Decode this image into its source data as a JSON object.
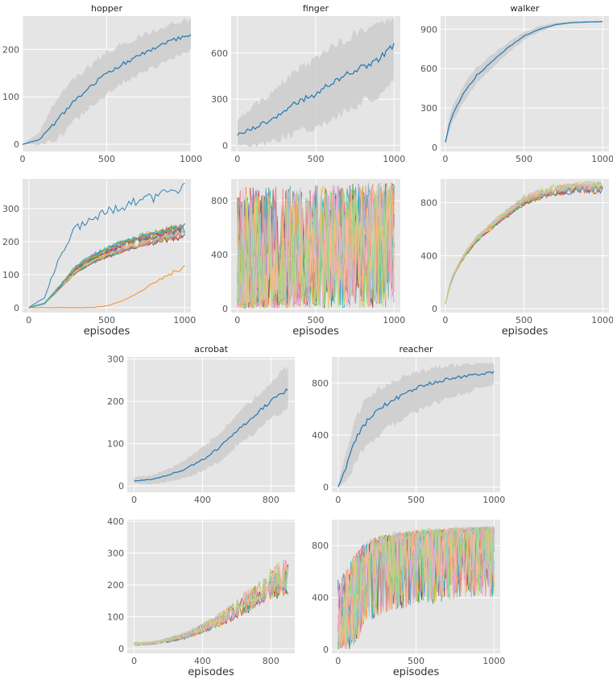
{
  "chart_data": [
    {
      "id": "hopper-mean",
      "type": "line",
      "title": "hopper",
      "xlabel": "",
      "ylabel": "",
      "xlim": [
        0,
        1000
      ],
      "ylim": [
        -15,
        270
      ],
      "xticks": [
        "0",
        "500",
        "1000"
      ],
      "xtick_values": [
        0,
        500,
        1000
      ],
      "yticks": [
        "0",
        "100",
        "200"
      ],
      "ytick_values": [
        0,
        100,
        200
      ],
      "series": [
        {
          "name": "mean",
          "x": [
            0,
            100,
            200,
            300,
            400,
            500,
            600,
            700,
            800,
            900,
            1000
          ],
          "values": [
            0,
            10,
            48,
            88,
            122,
            148,
            170,
            188,
            205,
            220,
            232
          ],
          "band_low": [
            0,
            0,
            10,
            45,
            80,
            105,
            130,
            148,
            165,
            182,
            200
          ],
          "band_high": [
            0,
            25,
            95,
            135,
            165,
            195,
            212,
            228,
            242,
            255,
            265
          ]
        }
      ]
    },
    {
      "id": "finger-mean",
      "type": "line",
      "title": "finger",
      "xlabel": "",
      "ylabel": "",
      "xlim": [
        -40,
        1040
      ],
      "ylim": [
        -40,
        840
      ],
      "xticks": [
        "0",
        "500",
        "1000"
      ],
      "xtick_values": [
        0,
        500,
        1000
      ],
      "yticks": [
        "0",
        "300",
        "600"
      ],
      "ytick_values": [
        0,
        300,
        600
      ],
      "series": [
        {
          "name": "mean",
          "x": [
            0,
            100,
            200,
            300,
            400,
            500,
            600,
            700,
            800,
            900,
            1000
          ],
          "values": [
            70,
            110,
            160,
            220,
            290,
            330,
            400,
            460,
            510,
            560,
            650
          ],
          "band_low": [
            0,
            0,
            20,
            50,
            90,
            120,
            170,
            230,
            280,
            330,
            410
          ],
          "band_high": [
            160,
            250,
            330,
            420,
            510,
            560,
            640,
            700,
            760,
            790,
            820
          ]
        }
      ]
    },
    {
      "id": "walker-mean",
      "type": "line",
      "title": "walker",
      "xlabel": "",
      "ylabel": "",
      "xlim": [
        -30,
        1040
      ],
      "ylim": [
        -30,
        1000
      ],
      "xticks": [
        "0",
        "500",
        "1000"
      ],
      "xtick_values": [
        0,
        500,
        1000
      ],
      "yticks": [
        "0",
        "300",
        "600",
        "900"
      ],
      "ytick_values": [
        0,
        300,
        600,
        900
      ],
      "series": [
        {
          "name": "mean",
          "x": [
            0,
            25,
            50,
            100,
            150,
            200,
            300,
            400,
            500,
            600,
            700,
            800,
            900,
            1000
          ],
          "values": [
            40,
            170,
            260,
            380,
            470,
            550,
            660,
            760,
            850,
            900,
            935,
            950,
            955,
            958
          ],
          "band_low": [
            20,
            120,
            200,
            320,
            410,
            490,
            610,
            720,
            820,
            880,
            925,
            945,
            950,
            955
          ],
          "band_high": [
            60,
            230,
            320,
            440,
            530,
            610,
            710,
            800,
            880,
            925,
            950,
            960,
            962,
            962
          ]
        }
      ]
    },
    {
      "id": "hopper-runs",
      "type": "line",
      "title": "",
      "xlabel": "episodes",
      "ylabel": "",
      "xlim": [
        -40,
        1040
      ],
      "ylim": [
        -15,
        390
      ],
      "xticks": [
        "0",
        "500",
        "1000"
      ],
      "xtick_values": [
        0,
        500,
        1000
      ],
      "yticks": [
        "0",
        "100",
        "200",
        "300"
      ],
      "ytick_values": [
        0,
        100,
        200,
        300
      ],
      "runs": 30,
      "run_spread": 0.22,
      "run_noise": 0.05,
      "run_curve": {
        "x": [
          0,
          100,
          200,
          300,
          400,
          500,
          600,
          700,
          800,
          900,
          1000
        ],
        "values": [
          0,
          12,
          60,
          110,
          140,
          160,
          178,
          192,
          205,
          215,
          225
        ]
      },
      "run_extremes": {
        "high": [
          0,
          30,
          160,
          240,
          270,
          290,
          305,
          320,
          335,
          350,
          370
        ],
        "low": [
          0,
          0,
          0,
          0,
          0,
          5,
          20,
          45,
          75,
          100,
          125
        ]
      }
    },
    {
      "id": "finger-runs",
      "type": "line",
      "title": "",
      "xlabel": "episodes",
      "ylabel": "",
      "xlim": [
        -40,
        1040
      ],
      "ylim": [
        -30,
        960
      ],
      "xticks": [
        "0",
        "500",
        "1000"
      ],
      "xtick_values": [
        0,
        500,
        1000
      ],
      "yticks": [
        "0",
        "400",
        "800"
      ],
      "ytick_values": [
        0,
        400,
        800
      ],
      "runs": 20,
      "run_spread": 0.0,
      "run_noise": 0.0,
      "run_jagged": 0.95,
      "run_curve": {
        "x": [
          0,
          100,
          200,
          300,
          400,
          500,
          600,
          700,
          800,
          900,
          1000
        ],
        "values": [
          80,
          130,
          180,
          240,
          300,
          350,
          420,
          480,
          530,
          580,
          640
        ]
      },
      "run_cap": 950
    },
    {
      "id": "walker-runs",
      "type": "line",
      "title": "",
      "xlabel": "episodes",
      "ylabel": "",
      "xlim": [
        -30,
        1040
      ],
      "ylim": [
        -30,
        980
      ],
      "xticks": [
        "0",
        "500",
        "1000"
      ],
      "xtick_values": [
        0,
        500,
        1000
      ],
      "yticks": [
        "0",
        "400",
        "800"
      ],
      "ytick_values": [
        0,
        400,
        800
      ],
      "runs": 20,
      "run_spread": 0.1,
      "run_noise": 0.03,
      "run_cap": 965,
      "run_curve": {
        "x": [
          0,
          25,
          50,
          100,
          150,
          200,
          300,
          400,
          500,
          600,
          700,
          800,
          900,
          1000
        ],
        "values": [
          40,
          170,
          260,
          380,
          470,
          550,
          660,
          760,
          850,
          900,
          935,
          950,
          955,
          958
        ]
      }
    },
    {
      "id": "acrobat-mean",
      "type": "line",
      "title": "acrobat",
      "xlabel": "",
      "ylabel": "",
      "xlim": [
        -40,
        940
      ],
      "ylim": [
        -15,
        305
      ],
      "xticks": [
        "0",
        "400",
        "800"
      ],
      "xtick_values": [
        0,
        400,
        800
      ],
      "yticks": [
        "0",
        "100",
        "200",
        "300"
      ],
      "ytick_values": [
        0,
        100,
        200,
        300
      ],
      "series": [
        {
          "name": "mean",
          "x": [
            0,
            100,
            200,
            300,
            400,
            500,
            600,
            700,
            800,
            900
          ],
          "values": [
            12,
            15,
            25,
            40,
            62,
            90,
            130,
            165,
            200,
            228
          ],
          "band_low": [
            5,
            5,
            10,
            20,
            35,
            60,
            95,
            125,
            160,
            180
          ],
          "band_high": [
            20,
            25,
            40,
            60,
            90,
            125,
            170,
            205,
            245,
            285
          ]
        }
      ]
    },
    {
      "id": "reacher-mean",
      "type": "line",
      "title": "reacher",
      "xlabel": "",
      "ylabel": "",
      "xlim": [
        -40,
        1040
      ],
      "ylim": [
        -40,
        1000
      ],
      "xticks": [
        "0",
        "500",
        "1000"
      ],
      "xtick_values": [
        0,
        500,
        1000
      ],
      "yticks": [
        "0",
        "400",
        "800"
      ],
      "ytick_values": [
        0,
        400,
        800
      ],
      "series": [
        {
          "name": "mean",
          "x": [
            0,
            50,
            100,
            150,
            200,
            300,
            400,
            500,
            600,
            700,
            800,
            900,
            1000
          ],
          "values": [
            0,
            150,
            330,
            450,
            530,
            630,
            700,
            760,
            800,
            830,
            850,
            865,
            885
          ],
          "band_low": [
            0,
            40,
            150,
            260,
            330,
            440,
            520,
            580,
            630,
            680,
            720,
            760,
            790
          ],
          "band_high": [
            30,
            260,
            500,
            620,
            700,
            780,
            840,
            880,
            910,
            930,
            940,
            945,
            950
          ]
        }
      ]
    },
    {
      "id": "acrobat-runs",
      "type": "line",
      "title": "",
      "xlabel": "episodes",
      "ylabel": "",
      "xlim": [
        -40,
        940
      ],
      "ylim": [
        -15,
        405
      ],
      "xticks": [
        "0",
        "400",
        "800"
      ],
      "xtick_values": [
        0,
        400,
        800
      ],
      "yticks": [
        "0",
        "100",
        "200",
        "300",
        "400"
      ],
      "ytick_values": [
        0,
        100,
        200,
        300,
        400
      ],
      "runs": 20,
      "run_spread": 0.25,
      "run_noise": 0.22,
      "run_cap": 395,
      "run_curve": {
        "x": [
          0,
          100,
          200,
          300,
          400,
          500,
          600,
          700,
          800,
          900
        ],
        "values": [
          15,
          18,
          28,
          42,
          65,
          92,
          130,
          165,
          205,
          235
        ]
      }
    },
    {
      "id": "reacher-runs",
      "type": "line",
      "title": "",
      "xlabel": "episodes",
      "ylabel": "",
      "xlim": [
        -40,
        1040
      ],
      "ylim": [
        -30,
        1000
      ],
      "xticks": [
        "0",
        "500",
        "1000"
      ],
      "xtick_values": [
        0,
        500,
        1000
      ],
      "yticks": [
        "0",
        "400",
        "800"
      ],
      "ytick_values": [
        0,
        400,
        800
      ],
      "runs": 20,
      "run_spread": 0.05,
      "run_noise": 0.0,
      "run_jagged": 0.55,
      "run_cap": 970,
      "run_curve": {
        "x": [
          0,
          50,
          100,
          150,
          200,
          300,
          400,
          500,
          600,
          700,
          800,
          900,
          1000
        ],
        "values": [
          20,
          200,
          420,
          580,
          680,
          760,
          800,
          830,
          850,
          860,
          870,
          880,
          890
        ]
      }
    }
  ],
  "colors": {
    "panel_bg": "#e5e5e5",
    "grid": "#ffffff",
    "mean_line": "#1f77b4",
    "band": "#cccccc",
    "palette": [
      "#1f77b4",
      "#ff7f0e",
      "#2ca02c",
      "#d62728",
      "#9467bd",
      "#8c564b",
      "#e377c2",
      "#7f7f7f",
      "#bcbd22",
      "#17becf",
      "#fdb462",
      "#fb8072",
      "#80b1d3",
      "#b3de69",
      "#8dd3c7",
      "#ff9896",
      "#c5b0d5",
      "#f7b6d2",
      "#ffbb78",
      "#98df8a"
    ]
  }
}
